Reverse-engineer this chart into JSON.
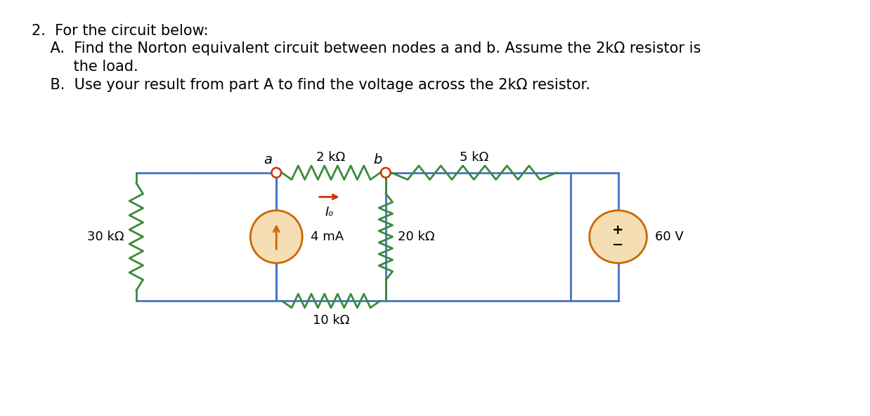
{
  "background": "#ffffff",
  "wire_color": "#4472C4",
  "resistor_color": "#3a8a3a",
  "node_color": "#cc3300",
  "current_source_color": "#cc6600",
  "current_source_fill": "#f5deb3",
  "voltage_source_color": "#cc6600",
  "voltage_source_fill": "#f5deb3",
  "arrow_color": "#cc3300",
  "label_30k": "30 kΩ",
  "label_2k": "2 kΩ",
  "label_5k": "5 kΩ",
  "label_10k": "10 kΩ",
  "label_20k": "20 kΩ",
  "label_4mA": "4 mA",
  "label_60V": "60 V",
  "label_a": "a",
  "label_b": "b",
  "label_Io": "Iₒ",
  "text_line1": "2.  For the circuit below:",
  "text_line2": "    A.  Find the Norton equivalent circuit between nodes a and b. Assume the 2kΩ resistor is",
  "text_line3": "         the load.",
  "text_line4": "    B.  Use your result from part A to find the voltage across the 2kΩ resistor.",
  "font_size_text": 15,
  "font_size_label": 13
}
